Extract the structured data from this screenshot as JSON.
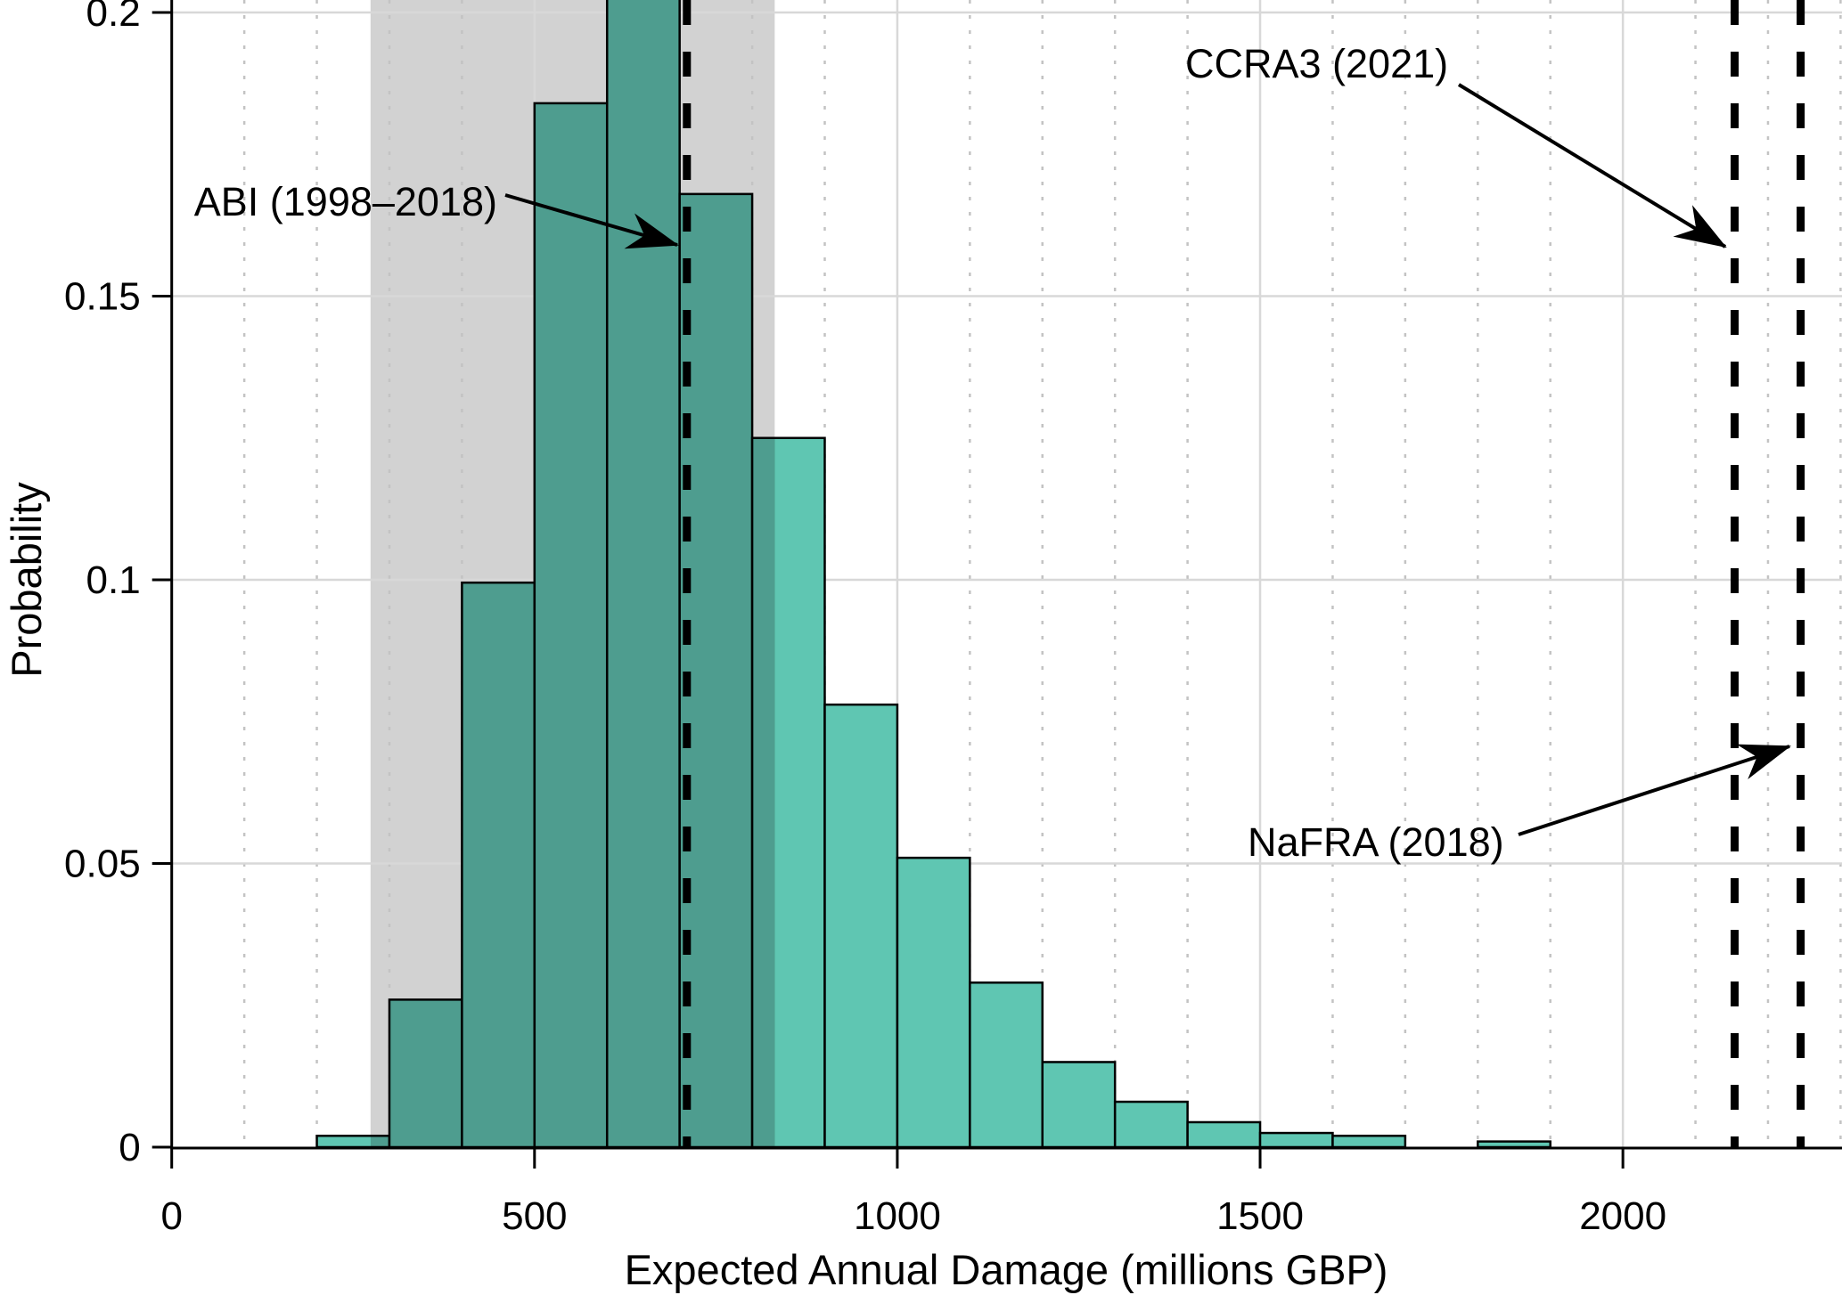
{
  "chart_data": {
    "type": "bar",
    "subtype": "histogram",
    "title": "",
    "xlabel": "Expected Annual Damage (millions GBP)",
    "ylabel": "Probability",
    "xlim": [
      0,
      2300
    ],
    "ylim": [
      0,
      0.2
    ],
    "grid": "on",
    "x_ticks": {
      "values": [
        0,
        500,
        1000,
        1500,
        2000
      ],
      "labels": [
        "0",
        "500",
        "1000",
        "1500",
        "2000"
      ]
    },
    "y_ticks": {
      "values": [
        0,
        0.05,
        0.1,
        0.15,
        0.2
      ],
      "labels": [
        "0",
        "0.05",
        "0.1",
        "0.15",
        "0.2"
      ]
    },
    "minor_grid_step_x": 100,
    "bin_width": 100,
    "bin_starts": [
      200,
      300,
      400,
      500,
      600,
      700,
      800,
      900,
      1000,
      1100,
      1200,
      1300,
      1400,
      1500,
      1600,
      1700,
      1800
    ],
    "values": [
      0.002,
      0.026,
      0.0995,
      0.184,
      0.204,
      0.168,
      0.125,
      0.078,
      0.051,
      0.029,
      0.015,
      0.008,
      0.0044,
      0.0025,
      0.002,
      0,
      0.001
    ],
    "peak_bin_clipped_at_top": true,
    "shaded_band": {
      "from": 274,
      "to": 831
    },
    "reference_lines": [
      {
        "label": "ABI (1998–2018)",
        "x": 710
      },
      {
        "label": "CCRA3 (2021)",
        "x": 2154
      },
      {
        "label": "NaFRA (2018)",
        "x": 2245
      }
    ]
  },
  "colors": {
    "bar_fill": "#5FC6B2",
    "bar_fill_shaded": "#4E9D8F",
    "bar_edge": "#000000",
    "band_fill": "#D2D2D2",
    "grid_major": "#D8D8D8",
    "grid_minor": "#C3C3C3",
    "axis": "#000000",
    "reference_line": "#000000"
  }
}
